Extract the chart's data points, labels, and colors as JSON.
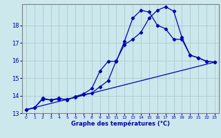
{
  "xlabel": "Graphe des températures (°C)",
  "background_color": "#cce8ec",
  "grid_color": "#aacccc",
  "line_color": "#0000bb",
  "xlim": [
    -0.5,
    23.5
  ],
  "ylim": [
    13.0,
    19.2
  ],
  "yticks": [
    13,
    14,
    15,
    16,
    17,
    18
  ],
  "xticks": [
    0,
    1,
    2,
    3,
    4,
    5,
    6,
    7,
    8,
    9,
    10,
    11,
    12,
    13,
    14,
    15,
    16,
    17,
    18,
    19,
    20,
    21,
    22,
    23
  ],
  "line1_x": [
    0,
    1,
    2,
    3,
    4,
    5,
    6,
    7,
    8,
    9,
    10,
    11,
    12,
    13,
    14,
    15,
    16,
    17,
    18,
    19,
    20,
    21,
    22,
    23
  ],
  "line1_y": [
    13.2,
    13.3,
    13.8,
    13.75,
    13.8,
    13.8,
    13.9,
    14.05,
    14.15,
    14.5,
    14.85,
    16.0,
    16.9,
    17.2,
    17.6,
    18.4,
    18.85,
    19.05,
    18.8,
    17.3,
    16.3,
    16.15,
    15.95,
    15.9
  ],
  "line2_x": [
    0,
    1,
    2,
    3,
    4,
    5,
    6,
    7,
    8,
    9,
    10,
    11,
    12,
    13,
    14,
    15,
    16,
    17,
    18,
    19,
    20,
    21,
    22,
    23
  ],
  "line2_y": [
    13.2,
    13.3,
    13.85,
    13.75,
    13.85,
    13.75,
    13.95,
    14.1,
    14.4,
    15.4,
    15.95,
    15.95,
    17.1,
    18.4,
    18.85,
    18.75,
    18.0,
    17.8,
    17.2,
    17.2,
    16.3,
    16.15,
    15.95,
    15.9
  ],
  "line3_x": [
    0,
    23
  ],
  "line3_y": [
    13.2,
    15.9
  ]
}
